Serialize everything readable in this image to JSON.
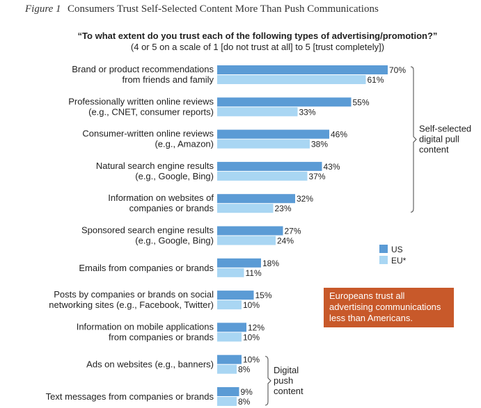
{
  "figure": {
    "number": "Figure 1",
    "title": "Consumers Trust Self-Selected Content More Than Push Communications"
  },
  "question": "“To what extent do you trust each of the following types of advertising/promotion?”",
  "scale_note": "(4 or 5 on a scale of 1 [do not trust at all] to 5 [trust completely])",
  "legend": [
    {
      "name": "US",
      "color": "#5b9bd5"
    },
    {
      "name": "EU*",
      "color": "#a9d6f3"
    }
  ],
  "brackets": [
    {
      "label_lines": [
        "Self-selected",
        "digital pull",
        "content"
      ],
      "from": 0,
      "to": 4
    },
    {
      "label_lines": [
        "Digital",
        "push",
        "content"
      ],
      "from": 9,
      "to": 10
    }
  ],
  "callout": {
    "lines": [
      "Europeans trust all",
      "advertising communications",
      "less than Americans."
    ],
    "color": "#c8592a"
  },
  "chart_data": {
    "type": "bar",
    "orientation": "horizontal",
    "value_suffix": "%",
    "categories": [
      [
        "Brand or product recommendations",
        "from friends and family"
      ],
      [
        "Professionally written online reviews",
        "(e.g., CNET, consumer reports)"
      ],
      [
        "Consumer-written online reviews",
        "(e.g., Amazon)"
      ],
      [
        "Natural search engine results",
        "(e.g., Google, Bing)"
      ],
      [
        "Information on websites of",
        "companies or brands"
      ],
      [
        "Sponsored search engine results",
        "(e.g., Google, Bing)"
      ],
      [
        "Emails from companies or brands"
      ],
      [
        "Posts by companies or brands on social",
        "networking sites (e.g., Facebook, Twitter)"
      ],
      [
        "Information on mobile applications",
        "from companies or brands"
      ],
      [
        "Ads on websites (e.g., banners)"
      ],
      [
        "Text messages from companies or brands"
      ]
    ],
    "series": [
      {
        "name": "US",
        "values": [
          70,
          55,
          46,
          43,
          32,
          27,
          18,
          15,
          12,
          10,
          9
        ]
      },
      {
        "name": "EU*",
        "values": [
          61,
          33,
          38,
          37,
          23,
          24,
          11,
          10,
          10,
          8,
          8
        ]
      }
    ]
  }
}
